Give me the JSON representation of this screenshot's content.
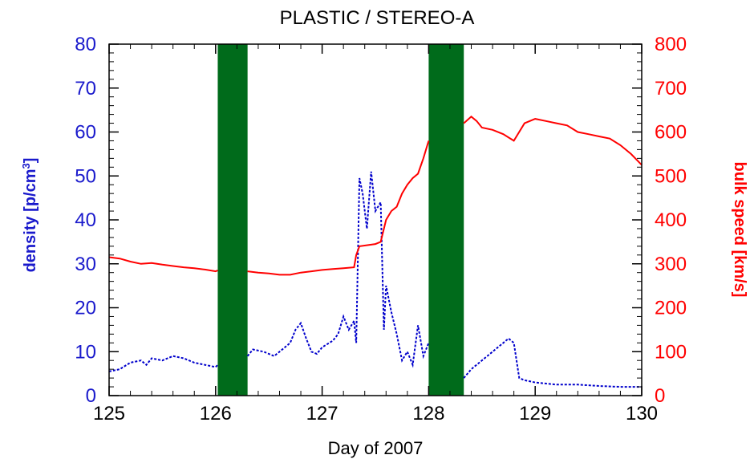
{
  "chart_data": {
    "type": "line",
    "title": "PLASTIC / STEREO-A",
    "xlabel": "Day of 2007",
    "ylabel_left": "density [p/cm3]",
    "ylabel_right": "bulk speed [km/s]",
    "xlim": [
      125,
      130
    ],
    "ylim_left": [
      0,
      80
    ],
    "ylim_right": [
      0,
      800
    ],
    "x_ticks": [
      "125",
      "126",
      "127",
      "128",
      "129",
      "130"
    ],
    "y_left_ticks": [
      "0",
      "10",
      "20",
      "30",
      "40",
      "50",
      "60",
      "70",
      "80"
    ],
    "y_right_ticks": [
      "0",
      "100",
      "200",
      "300",
      "400",
      "500",
      "600",
      "700",
      "800"
    ],
    "grid": false,
    "colors": {
      "density": "#0000cc",
      "speed": "#ff0000",
      "gap": "#006b1b",
      "axis_left": "#1a1acc",
      "axis_right": "#ff0000"
    },
    "data_gaps": [
      {
        "start": 126.02,
        "end": 126.3
      },
      {
        "start": 128.0,
        "end": 128.33
      }
    ],
    "series": [
      {
        "axis": "left",
        "line_style": "dashed",
        "color": "#0000cc",
        "x": [
          125.0,
          125.1,
          125.2,
          125.3,
          125.35,
          125.4,
          125.5,
          125.6,
          125.7,
          125.8,
          125.9,
          126.0,
          126.02,
          126.3,
          126.35,
          126.45,
          126.55,
          126.6,
          126.7,
          126.75,
          126.8,
          126.85,
          126.9,
          126.95,
          127.0,
          127.1,
          127.15,
          127.2,
          127.25,
          127.3,
          127.32,
          127.35,
          127.38,
          127.42,
          127.46,
          127.5,
          127.55,
          127.58,
          127.6,
          127.65,
          127.7,
          127.75,
          127.8,
          127.85,
          127.9,
          127.95,
          128.0,
          128.33,
          128.4,
          128.5,
          128.6,
          128.65,
          128.7,
          128.75,
          128.8,
          128.85,
          128.9,
          129.0,
          129.2,
          129.4,
          129.6,
          129.8,
          130.0
        ],
        "values": [
          5.5,
          6.0,
          7.5,
          8.0,
          7.0,
          8.5,
          8.0,
          9.0,
          8.5,
          7.5,
          7.0,
          6.5,
          7.0,
          9.0,
          10.5,
          10.0,
          9.0,
          10.0,
          12.0,
          15.0,
          16.5,
          13.0,
          10.0,
          9.5,
          11.0,
          12.5,
          14.0,
          18.0,
          15.0,
          17.0,
          12.0,
          49.5,
          46.0,
          38.0,
          51.0,
          42.0,
          44.0,
          15.0,
          25.0,
          19.0,
          14.0,
          8.0,
          10.0,
          7.0,
          16.0,
          9.0,
          12.0,
          4.0,
          6.0,
          8.0,
          10.0,
          11.0,
          12.0,
          13.0,
          12.0,
          4.0,
          3.5,
          3.0,
          2.5,
          2.5,
          2.2,
          2.0,
          2.0
        ]
      },
      {
        "axis": "right",
        "line_style": "solid",
        "color": "#ff0000",
        "x": [
          125.0,
          125.1,
          125.2,
          125.3,
          125.4,
          125.5,
          125.6,
          125.7,
          125.8,
          125.9,
          126.0,
          126.02,
          126.3,
          126.4,
          126.5,
          126.6,
          126.7,
          126.8,
          126.9,
          127.0,
          127.1,
          127.2,
          127.3,
          127.32,
          127.35,
          127.5,
          127.55,
          127.6,
          127.65,
          127.7,
          127.75,
          127.8,
          127.85,
          127.9,
          127.95,
          128.0,
          128.33,
          128.4,
          128.45,
          128.5,
          128.6,
          128.7,
          128.8,
          128.9,
          129.0,
          129.1,
          129.2,
          129.3,
          129.4,
          129.5,
          129.6,
          129.7,
          129.8,
          129.9,
          130.0
        ],
        "values": [
          315,
          312,
          305,
          300,
          302,
          298,
          295,
          292,
          290,
          287,
          283,
          285,
          283,
          280,
          278,
          275,
          275,
          280,
          283,
          286,
          288,
          290,
          292,
          320,
          340,
          345,
          350,
          400,
          420,
          430,
          460,
          480,
          495,
          505,
          540,
          580,
          620,
          635,
          625,
          610,
          605,
          595,
          580,
          620,
          630,
          625,
          620,
          615,
          600,
          595,
          590,
          585,
          570,
          550,
          525
        ]
      }
    ]
  }
}
